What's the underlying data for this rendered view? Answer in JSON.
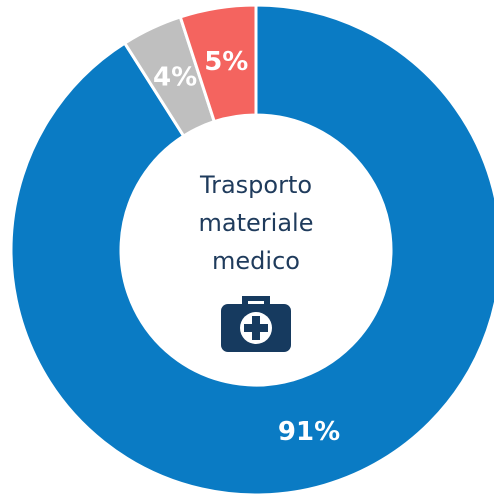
{
  "chart_data": {
    "type": "donut",
    "center_text": [
      "Trasporto",
      "materiale",
      "medico"
    ],
    "categories": [
      null,
      null,
      null
    ],
    "values": [
      91,
      4,
      5
    ],
    "value_labels": [
      "91%",
      "4%",
      "5%"
    ],
    "colors": [
      "#0a7bc4",
      "#bfbfbf",
      "#f4645f"
    ]
  }
}
